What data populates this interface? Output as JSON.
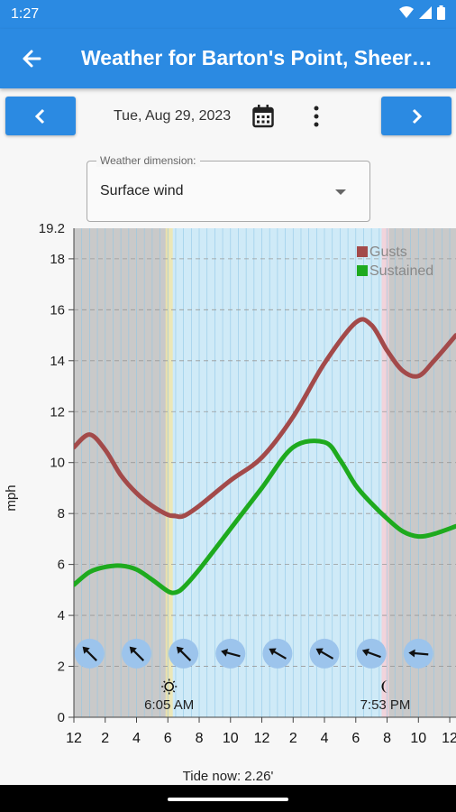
{
  "status_bar": {
    "time": "1:27",
    "icons": [
      "wifi-icon",
      "cell-signal-icon",
      "battery-icon"
    ]
  },
  "app_bar": {
    "title": "Weather for Barton's Point, Sheern…",
    "back_icon": "arrow-left-icon"
  },
  "date_nav": {
    "prev_icon": "chevron-left-icon",
    "next_icon": "chevron-right-icon",
    "date": "Tue, Aug 29, 2023",
    "calendar_icon": "calendar-icon",
    "more_icon": "more-vert-icon"
  },
  "dimension": {
    "label": "Weather dimension:",
    "value": "Surface wind"
  },
  "colors": {
    "accent": "#2b8ae2",
    "gusts": "#a34a4a",
    "sustained": "#1eaa1e",
    "night": "#c9c9c9",
    "day": "#cfeaf7"
  },
  "chart_data": {
    "type": "line",
    "x_unit": "hours",
    "ylabel": "mph",
    "ylim": [
      0,
      19.2
    ],
    "y_top_label": "19.2",
    "yticks": [
      "0",
      "2",
      "4",
      "6",
      "8",
      "10",
      "12",
      "14",
      "16",
      "18"
    ],
    "xlim": [
      0,
      24.4
    ],
    "xtick_labels": [
      "12",
      "2",
      "4",
      "6",
      "8",
      "10",
      "12",
      "2",
      "4",
      "6",
      "8",
      "10",
      "12"
    ],
    "xtick_positions": [
      0,
      2,
      4,
      6,
      8,
      10,
      12,
      14,
      16,
      18,
      20,
      22,
      24
    ],
    "legend": [
      "Gusts",
      "Sustained"
    ],
    "series": [
      {
        "name": "Gusts",
        "x": [
          0,
          1,
          2,
          3,
          4,
          5,
          6,
          6.5,
          7,
          8,
          10,
          12,
          14,
          16,
          18,
          19,
          20,
          21,
          22,
          23,
          24.4
        ],
        "values": [
          10.6,
          11.1,
          10.5,
          9.5,
          8.8,
          8.3,
          7.95,
          7.9,
          7.9,
          8.3,
          9.3,
          10.2,
          11.8,
          13.9,
          15.5,
          15.4,
          14.4,
          13.6,
          13.4,
          14.0,
          15.0
        ]
      },
      {
        "name": "Sustained",
        "x": [
          0,
          1,
          2,
          3,
          4,
          5,
          6,
          6.5,
          7,
          8,
          10,
          12,
          14,
          16,
          17,
          18,
          19,
          20,
          21,
          22,
          23,
          24.4
        ],
        "values": [
          5.2,
          5.7,
          5.9,
          5.95,
          5.8,
          5.4,
          4.95,
          4.9,
          5.1,
          5.8,
          7.4,
          9.0,
          10.6,
          10.8,
          10.1,
          9.1,
          8.4,
          7.8,
          7.3,
          7.1,
          7.2,
          7.5
        ]
      }
    ],
    "wind_arrows": [
      {
        "hour": 1,
        "angle": -135
      },
      {
        "hour": 4,
        "angle": -135
      },
      {
        "hour": 7,
        "angle": -135
      },
      {
        "hour": 10,
        "angle": -165
      },
      {
        "hour": 13,
        "angle": -150
      },
      {
        "hour": 16,
        "angle": -150
      },
      {
        "hour": 19,
        "angle": -160
      },
      {
        "hour": 22,
        "angle": -175
      }
    ],
    "sunrise": {
      "hour": 6.083,
      "label": "6:05 AM",
      "icon": "sun-icon"
    },
    "sunset": {
      "hour": 19.883,
      "label": "7:53 PM",
      "icon": "moon-icon"
    }
  },
  "tide": {
    "text": "Tide now: 2.26'"
  }
}
